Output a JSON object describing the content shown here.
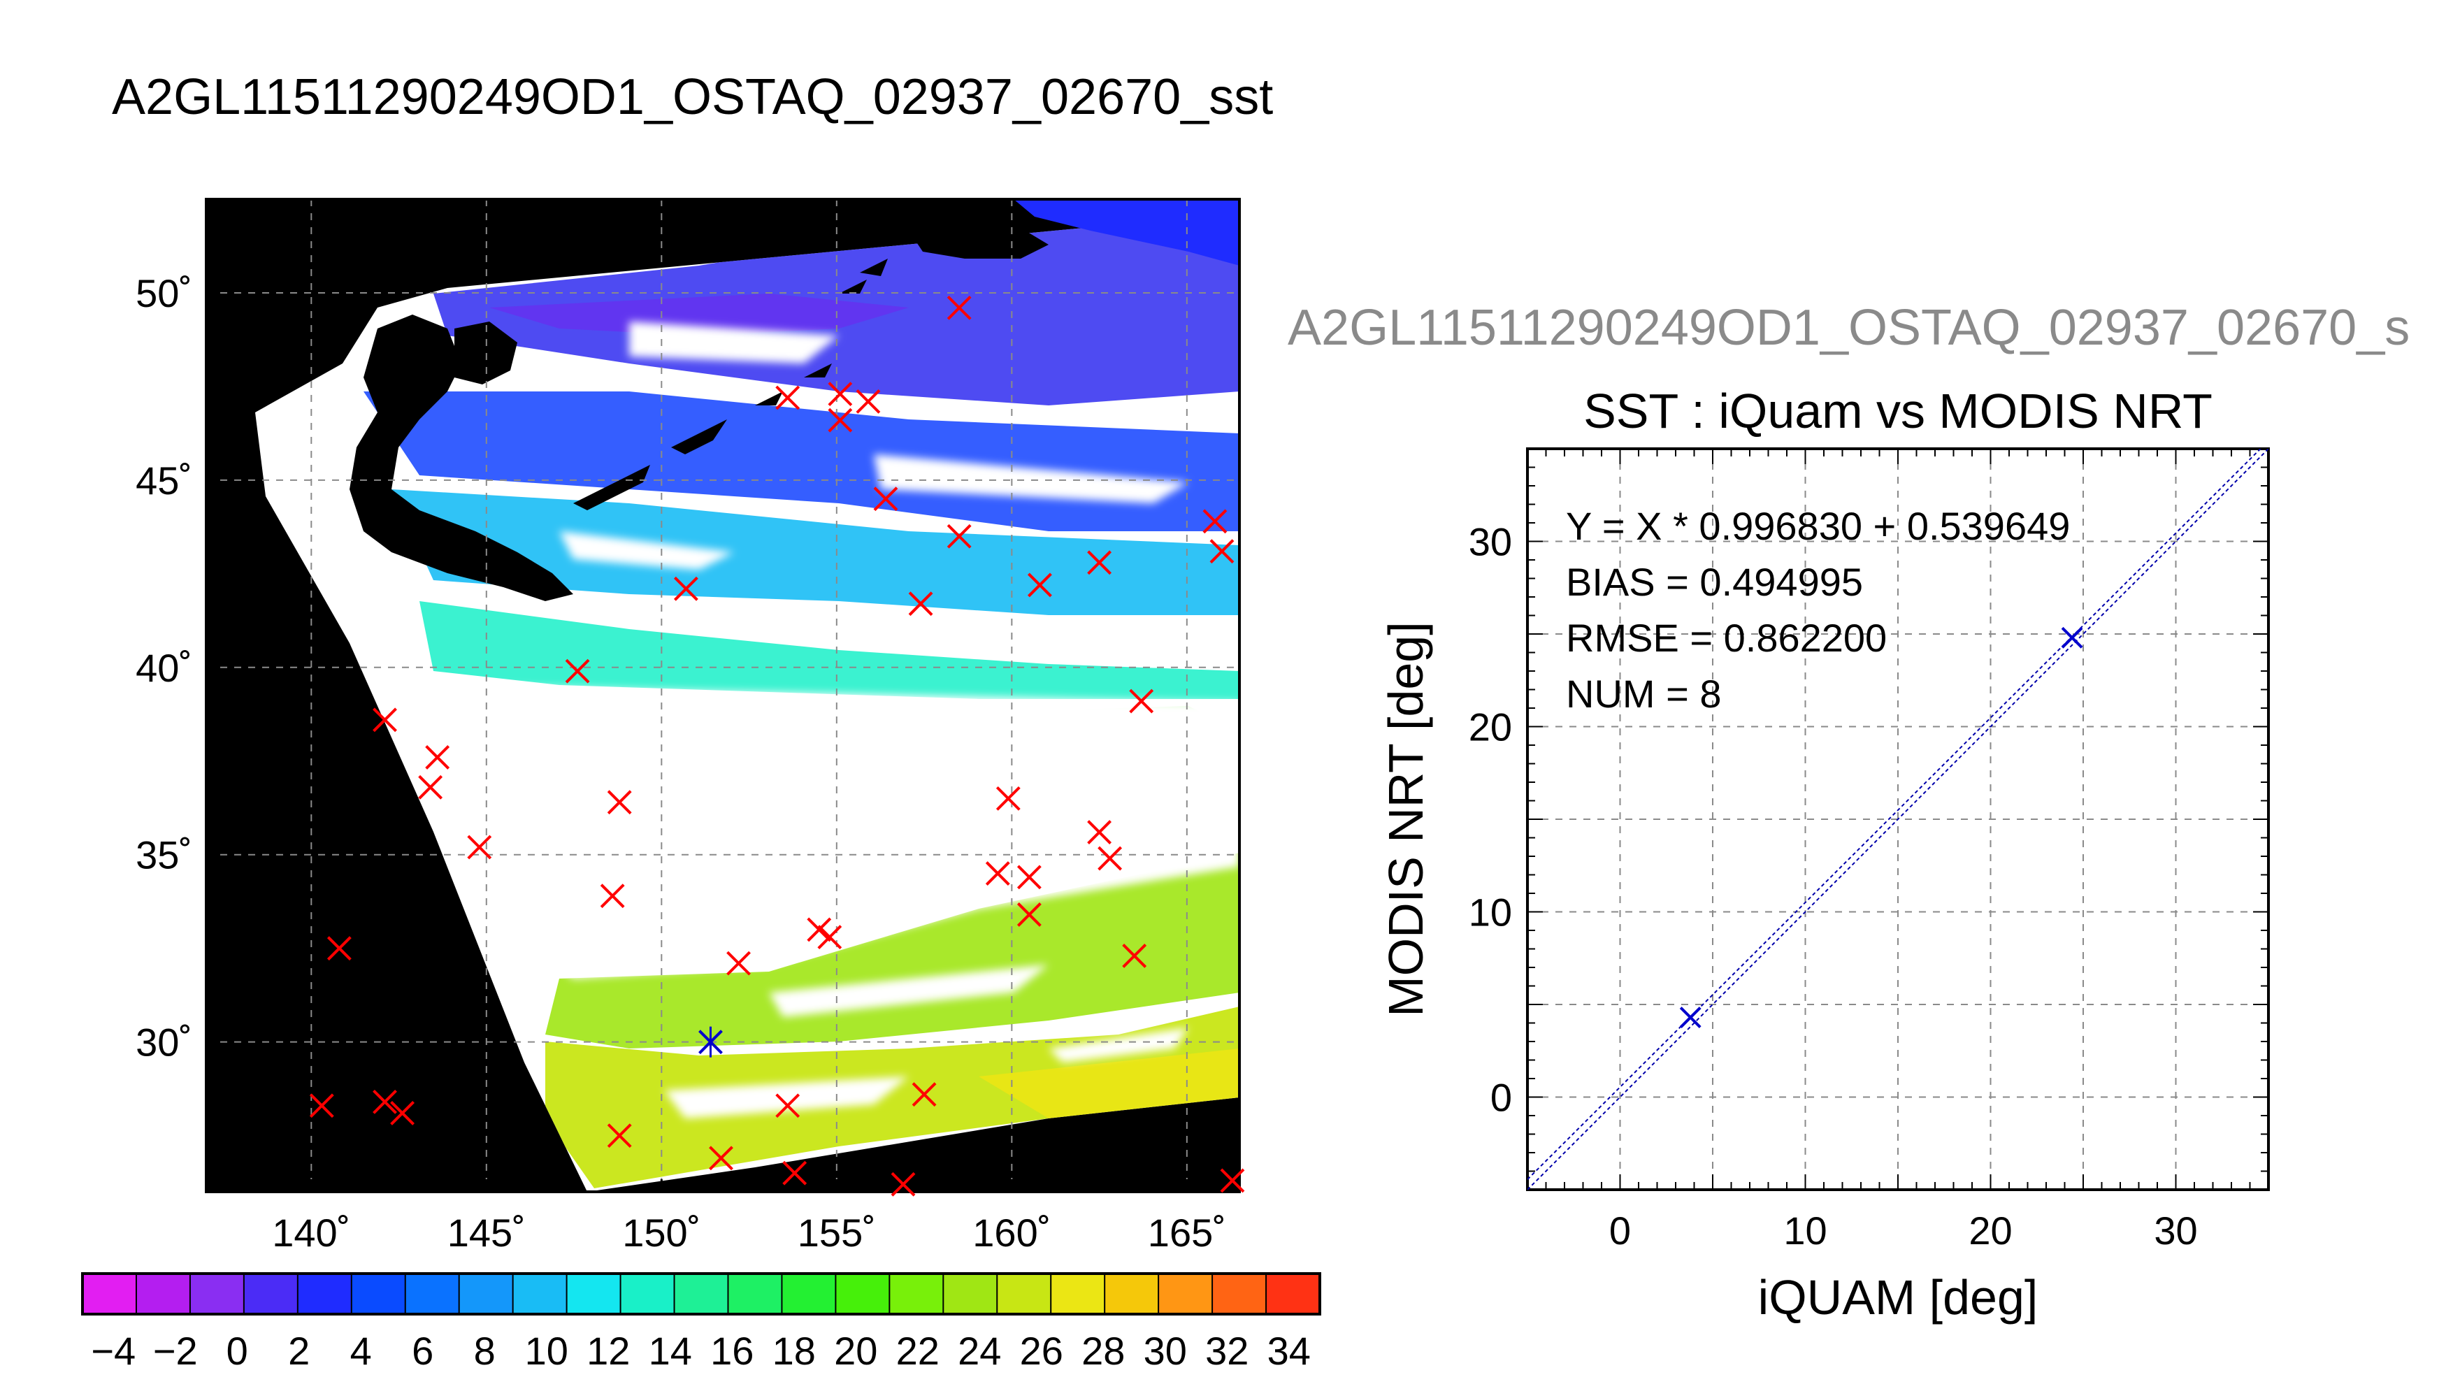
{
  "main_title": "A2GL11511290249OD1_OSTAQ_02937_02670_sst",
  "scatter_file_title": "A2GL11511290249OD1_OSTAQ_02937_02670_s",
  "colors": {
    "match_marker": "#ff0000",
    "highlight_marker": "#0000cc",
    "fit_line": "#0000aa",
    "map_background": "#000000",
    "cloud": "#ffffff"
  },
  "chart_data": [
    {
      "type": "heatmap",
      "title": "",
      "xlabel": "",
      "ylabel": "",
      "x_ticks": [
        "140˚",
        "145˚",
        "150˚",
        "155˚",
        "160˚",
        "165˚"
      ],
      "x_tick_values": [
        140,
        145,
        150,
        155,
        160,
        165
      ],
      "y_ticks": [
        "30˚",
        "35˚",
        "40˚",
        "45˚",
        "50˚"
      ],
      "y_tick_values": [
        30,
        35,
        40,
        45,
        50
      ],
      "xlim": [
        137,
        166.5
      ],
      "ylim": [
        26,
        52.5
      ],
      "grid": true,
      "colorbar": {
        "tick_labels": [
          "−4",
          "−2",
          "0",
          "2",
          "4",
          "6",
          "8",
          "10",
          "12",
          "14",
          "16",
          "18",
          "20",
          "22",
          "24",
          "26",
          "28",
          "30",
          "32",
          "34"
        ],
        "range": [
          -5,
          35
        ],
        "segments": 20,
        "colors": [
          "#e21ef2",
          "#b41ef0",
          "#8a2ef2",
          "#4b2cf6",
          "#1f2cff",
          "#0a4bff",
          "#0a72ff",
          "#1497fa",
          "#19bcf5",
          "#14e6f0",
          "#19f0c8",
          "#1ef096",
          "#1ef064",
          "#23f032",
          "#46f00a",
          "#78f00a",
          "#a0e614",
          "#c8e614",
          "#ebe614",
          "#f5c80a",
          "#ff9614",
          "#ff6414",
          "#ff3214"
        ]
      },
      "matchup_points": [
        [
          158.5,
          49.6
        ],
        [
          153.6,
          47.2
        ],
        [
          155.1,
          47.3
        ],
        [
          155.9,
          47.1
        ],
        [
          155.1,
          46.6
        ],
        [
          156.4,
          44.5
        ],
        [
          158.5,
          43.5
        ],
        [
          160.8,
          42.2
        ],
        [
          162.5,
          42.8
        ],
        [
          157.4,
          41.7
        ],
        [
          150.7,
          42.1
        ],
        [
          147.6,
          39.9
        ],
        [
          163.7,
          39.1
        ],
        [
          142.1,
          38.6
        ],
        [
          143.6,
          37.6
        ],
        [
          143.4,
          36.8
        ],
        [
          148.8,
          36.4
        ],
        [
          159.9,
          36.5
        ],
        [
          162.5,
          35.6
        ],
        [
          162.8,
          34.9
        ],
        [
          144.8,
          35.2
        ],
        [
          159.6,
          34.5
        ],
        [
          160.5,
          34.4
        ],
        [
          148.6,
          33.9
        ],
        [
          160.5,
          33.4
        ],
        [
          154.5,
          33.0
        ],
        [
          154.8,
          32.8
        ],
        [
          152.2,
          32.1
        ],
        [
          163.5,
          32.3
        ],
        [
          140.8,
          32.5
        ],
        [
          140.3,
          28.3
        ],
        [
          142.1,
          28.4
        ],
        [
          142.6,
          28.1
        ],
        [
          153.6,
          28.3
        ],
        [
          157.5,
          28.6
        ],
        [
          148.8,
          27.5
        ],
        [
          151.7,
          26.9
        ],
        [
          153.8,
          26.5
        ],
        [
          156.9,
          26.2
        ],
        [
          166.3,
          26.3
        ],
        [
          165.8,
          43.9
        ],
        [
          166.0,
          43.1
        ]
      ],
      "highlighted_points": [
        [
          151.4,
          30.0
        ]
      ]
    },
    {
      "type": "scatter",
      "title": "SST : iQuam vs MODIS NRT",
      "xlabel": "iQUAM [deg]",
      "ylabel": "MODIS NRT [deg]",
      "xlim": [
        -5,
        35
      ],
      "ylim": [
        -5,
        35
      ],
      "x_ticks": [
        0,
        10,
        20,
        30
      ],
      "y_ticks": [
        0,
        10,
        20,
        30
      ],
      "grid": true,
      "points": [
        [
          3.8,
          4.3
        ],
        [
          24.4,
          24.8
        ]
      ],
      "fit": {
        "slope": 0.99683,
        "intercept": 0.539649
      },
      "annotations": [
        "Y = X * 0.996830 + 0.539649",
        "BIAS = 0.494995",
        "RMSE = 0.862200",
        "NUM = 8"
      ]
    }
  ]
}
